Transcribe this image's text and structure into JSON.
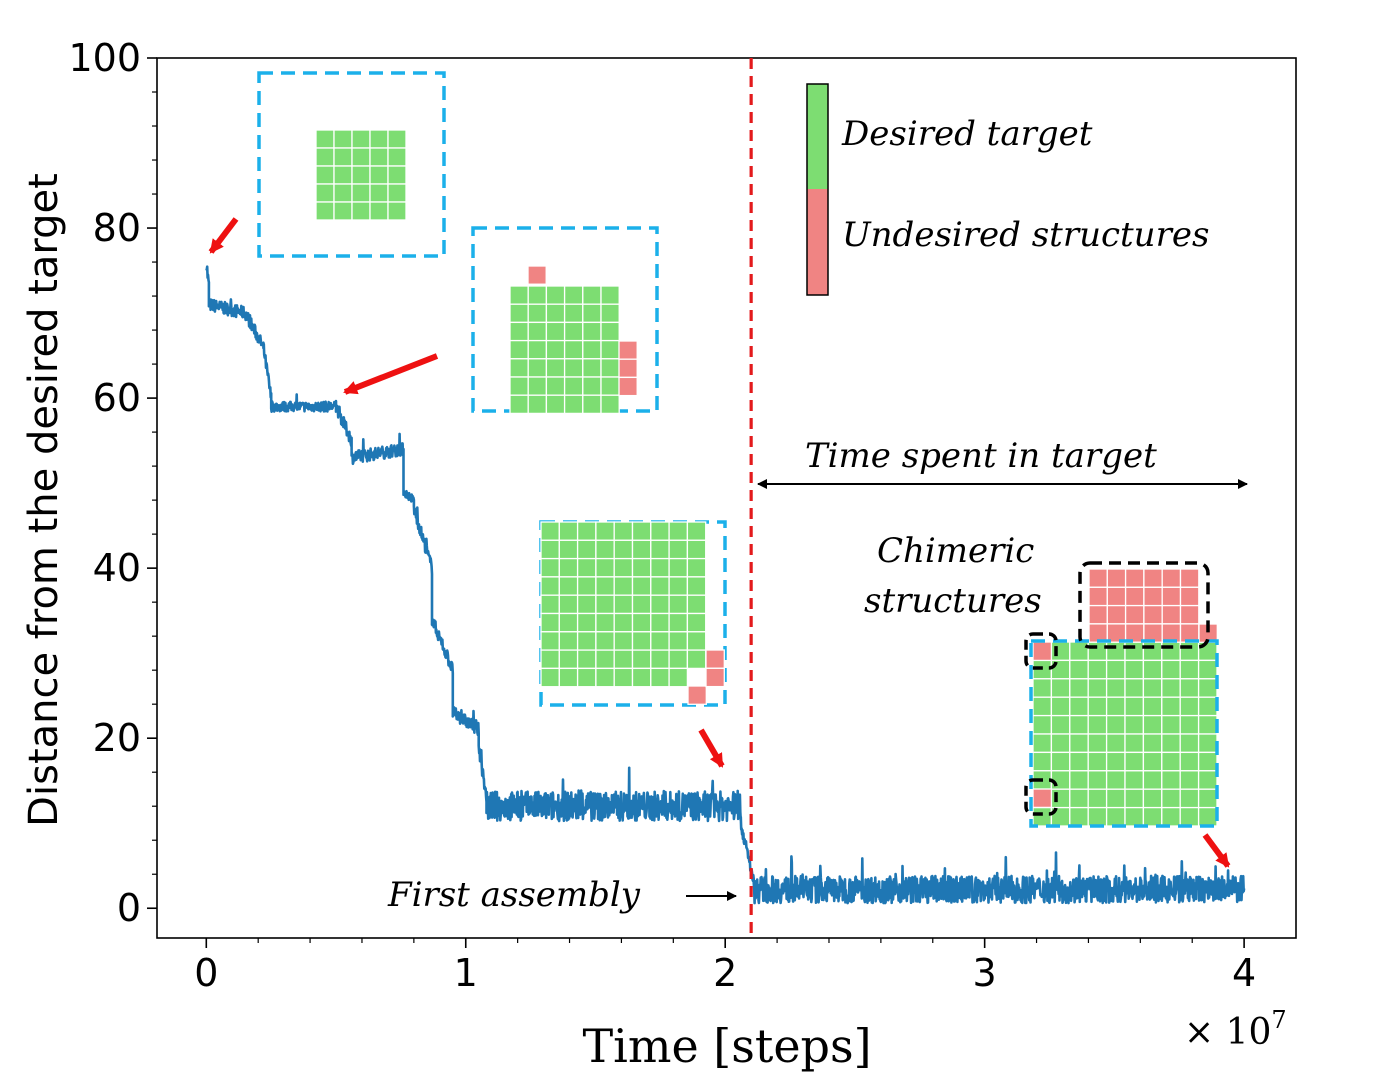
{
  "chart_data": {
    "type": "line",
    "xlabel": "Time [steps]",
    "ylabel": "Distance from the desired target",
    "x_multiplier": "× 10",
    "x_multiplier_exp": "7",
    "xlim": [
      -0.19,
      4.2
    ],
    "ylim": [
      -3.5,
      100
    ],
    "xticks": [
      0,
      1,
      2,
      3,
      4
    ],
    "xtick_labels": [
      "0",
      "1",
      "2",
      "3",
      "4"
    ],
    "yticks": [
      0,
      20,
      40,
      60,
      80,
      100
    ],
    "ytick_labels": [
      "0",
      "20",
      "40",
      "60",
      "80",
      "100"
    ],
    "series": [
      {
        "name": "distance",
        "color": "#1f77b4",
        "segments": [
          {
            "x0": 0.0,
            "x1": 0.01,
            "y0": 76,
            "y1": 73,
            "noise": 2
          },
          {
            "x0": 0.01,
            "x1": 0.15,
            "y0": 71,
            "y1": 70,
            "noise": 1.5
          },
          {
            "x0": 0.15,
            "x1": 0.22,
            "y0": 70,
            "y1": 66,
            "noise": 1.5
          },
          {
            "x0": 0.22,
            "x1": 0.25,
            "y0": 66,
            "y1": 60,
            "noise": 1.5
          },
          {
            "x0": 0.25,
            "x1": 0.5,
            "y0": 59,
            "y1": 59,
            "noise": 1.2
          },
          {
            "x0": 0.5,
            "x1": 0.56,
            "y0": 59,
            "y1": 55,
            "noise": 1.5
          },
          {
            "x0": 0.56,
            "x1": 0.76,
            "y0": 53,
            "y1": 54,
            "noise": 1.5
          },
          {
            "x0": 0.76,
            "x1": 0.8,
            "y0": 49,
            "y1": 48,
            "noise": 1
          },
          {
            "x0": 0.8,
            "x1": 0.87,
            "y0": 47,
            "y1": 40,
            "noise": 1.5
          },
          {
            "x0": 0.87,
            "x1": 0.95,
            "y0": 34,
            "y1": 28,
            "noise": 1.5
          },
          {
            "x0": 0.95,
            "x1": 1.05,
            "y0": 23,
            "y1": 21,
            "noise": 1.5
          },
          {
            "x0": 1.05,
            "x1": 1.08,
            "y0": 19,
            "y1": 13,
            "noise": 1.5
          },
          {
            "x0": 1.08,
            "x1": 2.06,
            "y0": 12,
            "y1": 12,
            "noise": 3.5
          },
          {
            "x0": 2.06,
            "x1": 2.11,
            "y0": 10,
            "y1": 3,
            "noise": 1.5
          },
          {
            "x0": 2.11,
            "x1": 4.0,
            "y0": 2.2,
            "y1": 2.2,
            "noise": 3.2
          }
        ]
      }
    ],
    "vline": {
      "x": 2.1,
      "color": "#e31a1c",
      "style": "dashed"
    },
    "annotations": {
      "first_assembly": "First assembly",
      "time_in_target": "Time spent in target",
      "chimeric_line1": "Chimeric",
      "chimeric_line2": "structures"
    },
    "legend": {
      "placement": "top-right",
      "entries": [
        {
          "label": "Desired target",
          "color": "#7ddd72"
        },
        {
          "label": "Undesired structures",
          "color": "#f08483"
        }
      ]
    }
  }
}
